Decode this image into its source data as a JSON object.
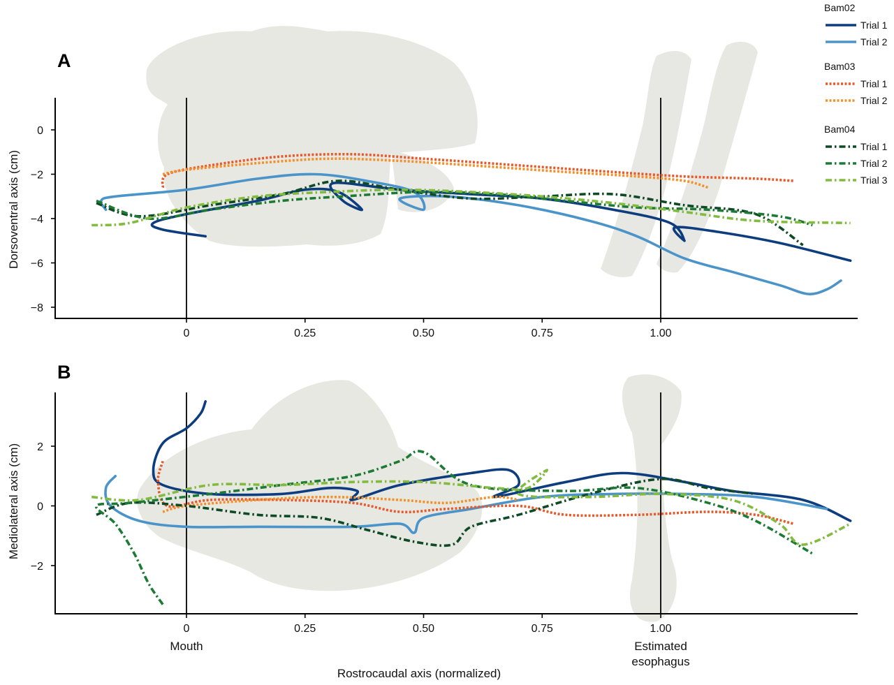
{
  "chart_data": [
    {
      "panel": "A",
      "type": "line",
      "ylabel": "Dorsoventral axis (cm)",
      "xlim": [
        -0.28,
        1.4
      ],
      "ylim": [
        -8.4,
        1.4
      ],
      "x_ticks": [
        0,
        0.25,
        0.5,
        0.75,
        1.0
      ],
      "x_tick_labels": [
        "0",
        "0.25",
        "0.50",
        "0.75",
        "1.00"
      ],
      "y_ticks": [
        0,
        -2,
        -4,
        -6,
        -8
      ],
      "y_tick_labels": [
        "0",
        "−2",
        "−4",
        "−6",
        "−8"
      ],
      "reference_lines_x": [
        0,
        1.0
      ],
      "background": "skull and hyoid CT model, lateral view",
      "series": [
        {
          "individual": "Bam02",
          "trial": "Trial 1",
          "color": "#0d3d7e",
          "dash": "solid",
          "x": [
            0.04,
            -0.05,
            -0.07,
            0.0,
            0.15,
            0.25,
            0.32,
            0.37,
            0.33,
            0.31,
            0.45,
            0.6,
            0.75,
            0.9,
            1.02,
            1.05,
            1.03,
            1.12,
            1.25,
            1.4
          ],
          "y": [
            -4.8,
            -4.5,
            -4.2,
            -3.8,
            -3.2,
            -2.7,
            -2.8,
            -3.6,
            -3.2,
            -2.4,
            -2.7,
            -2.9,
            -3.1,
            -3.6,
            -4.2,
            -5.0,
            -4.4,
            -4.6,
            -5.1,
            -5.9
          ]
        },
        {
          "individual": "Bam02",
          "trial": "Trial 2",
          "color": "#4b94c9",
          "dash": "solid",
          "x": [
            -0.17,
            -0.18,
            -0.15,
            0.0,
            0.15,
            0.27,
            0.38,
            0.48,
            0.5,
            0.45,
            0.55,
            0.7,
            0.85,
            0.95,
            1.05,
            1.15,
            1.25,
            1.31,
            1.35,
            1.38
          ],
          "y": [
            -3.6,
            -3.2,
            -3.0,
            -2.7,
            -2.2,
            -2.0,
            -2.3,
            -2.8,
            -3.6,
            -3.1,
            -3.0,
            -3.4,
            -4.1,
            -4.8,
            -5.8,
            -6.4,
            -7.0,
            -7.4,
            -7.2,
            -6.8
          ]
        },
        {
          "individual": "Bam03",
          "trial": "Trial 1",
          "color": "#e8592a",
          "dash": "dotted",
          "x": [
            -0.05,
            -0.04,
            0.05,
            0.2,
            0.35,
            0.5,
            0.7,
            0.9,
            1.05,
            1.2,
            1.28
          ],
          "y": [
            -2.6,
            -2.0,
            -1.6,
            -1.2,
            -1.1,
            -1.3,
            -1.6,
            -1.9,
            -2.1,
            -2.2,
            -2.3
          ]
        },
        {
          "individual": "Bam03",
          "trial": "Trial 2",
          "color": "#f39128",
          "dash": "dotted",
          "x": [
            -0.05,
            0.0,
            0.15,
            0.3,
            0.45,
            0.6,
            0.8,
            0.95,
            1.05,
            1.1
          ],
          "y": [
            -2.0,
            -1.8,
            -1.5,
            -1.3,
            -1.4,
            -1.6,
            -1.9,
            -2.1,
            -2.3,
            -2.6
          ]
        },
        {
          "individual": "Bam04",
          "trial": "Trial 1",
          "color": "#0f4a26",
          "dash": "dashdot",
          "x": [
            -0.19,
            -0.1,
            0.05,
            0.2,
            0.32,
            0.45,
            0.6,
            0.75,
            0.9,
            1.05,
            1.2,
            1.3
          ],
          "y": [
            -3.3,
            -3.9,
            -3.4,
            -2.9,
            -2.3,
            -2.7,
            -3.1,
            -3.0,
            -2.9,
            -3.4,
            -3.8,
            -5.2
          ]
        },
        {
          "individual": "Bam04",
          "trial": "Trial 2",
          "color": "#1c7a34",
          "dash": "dashdot",
          "x": [
            -0.19,
            -0.08,
            0.05,
            0.2,
            0.33,
            0.5,
            0.65,
            0.8,
            0.95,
            1.1,
            1.25,
            1.32
          ],
          "y": [
            -3.2,
            -4.0,
            -3.6,
            -3.2,
            -3.0,
            -2.8,
            -2.9,
            -3.2,
            -3.5,
            -3.6,
            -3.9,
            -4.3
          ]
        },
        {
          "individual": "Bam04",
          "trial": "Trial 3",
          "color": "#82bb3f",
          "dash": "dashdot",
          "x": [
            -0.2,
            -0.12,
            0.0,
            0.15,
            0.3,
            0.45,
            0.6,
            0.75,
            0.9,
            1.05,
            1.2,
            1.4
          ],
          "y": [
            -4.3,
            -4.2,
            -3.5,
            -3.0,
            -2.8,
            -2.7,
            -2.8,
            -3.0,
            -3.3,
            -3.7,
            -4.1,
            -4.2
          ]
        }
      ]
    },
    {
      "panel": "B",
      "type": "line",
      "xlabel": "Rostrocaudal axis (normalized)",
      "ylabel": "Mediolateral axis (cm)",
      "xlim": [
        -0.28,
        1.4
      ],
      "ylim": [
        -3.6,
        3.8
      ],
      "x_ticks": [
        0,
        0.25,
        0.5,
        0.75,
        1.0
      ],
      "x_tick_labels": [
        "0",
        "0.25",
        "0.50",
        "0.75",
        "1.00"
      ],
      "y_ticks": [
        2,
        0,
        -2
      ],
      "y_tick_labels": [
        "2",
        "0",
        "−2"
      ],
      "reference_lines_x": [
        0,
        1.0
      ],
      "reference_line_labels": [
        "Mouth",
        "Estimated esophagus"
      ],
      "background": "skull and hyoid CT model, dorsal view",
      "series": [
        {
          "individual": "Bam02",
          "trial": "Trial 1",
          "color": "#0d3d7e",
          "dash": "solid",
          "x": [
            0.04,
            0.03,
            0.0,
            -0.05,
            -0.07,
            -0.05,
            0.05,
            0.2,
            0.3,
            0.36,
            0.35,
            0.45,
            0.6,
            0.68,
            0.7,
            0.65,
            0.8,
            0.92,
            1.05,
            1.15,
            1.3,
            1.4
          ],
          "y": [
            3.5,
            3.1,
            2.6,
            2.1,
            1.2,
            0.7,
            0.4,
            0.4,
            0.6,
            0.5,
            0.2,
            0.7,
            1.1,
            1.2,
            0.7,
            0.3,
            0.8,
            1.1,
            0.8,
            0.5,
            0.2,
            -0.5
          ]
        },
        {
          "individual": "Bam02",
          "trial": "Trial 2",
          "color": "#4b94c9",
          "dash": "solid",
          "x": [
            -0.15,
            -0.17,
            -0.16,
            -0.1,
            0.0,
            0.15,
            0.35,
            0.45,
            0.48,
            0.5,
            0.6,
            0.75,
            0.9,
            1.05,
            1.2,
            1.35
          ],
          "y": [
            1.0,
            0.6,
            0.0,
            -0.5,
            -0.7,
            -0.7,
            -0.7,
            -0.6,
            -0.9,
            -0.4,
            -0.1,
            0.3,
            0.4,
            0.4,
            0.3,
            -0.1
          ]
        },
        {
          "individual": "Bam03",
          "trial": "Trial 1",
          "color": "#e8592a",
          "dash": "dotted",
          "x": [
            -0.05,
            -0.06,
            -0.04,
            0.05,
            0.2,
            0.35,
            0.45,
            0.55,
            0.7,
            0.8,
            0.95,
            1.1,
            1.2,
            1.28
          ],
          "y": [
            1.5,
            0.8,
            0.0,
            0.2,
            0.2,
            0.1,
            -0.2,
            -0.1,
            0.0,
            -0.3,
            -0.3,
            -0.2,
            -0.3,
            -0.6
          ]
        },
        {
          "individual": "Bam03",
          "trial": "Trial 2",
          "color": "#f39128",
          "dash": "dotted",
          "x": [
            -0.05,
            0.0,
            0.15,
            0.3,
            0.45,
            0.55,
            0.65,
            0.7
          ],
          "y": [
            -0.2,
            0.0,
            0.2,
            0.3,
            0.2,
            0.1,
            0.3,
            0.2
          ]
        },
        {
          "individual": "Bam04",
          "trial": "Trial 1",
          "color": "#0f4a26",
          "dash": "dashdot",
          "x": [
            -0.19,
            -0.12,
            0.0,
            0.15,
            0.28,
            0.38,
            0.48,
            0.56,
            0.6,
            0.7,
            0.85,
            1.0,
            1.1,
            1.2
          ],
          "y": [
            -0.3,
            0.1,
            0.0,
            -0.3,
            -0.4,
            -0.8,
            -1.2,
            -1.3,
            -0.7,
            -0.3,
            0.4,
            0.9,
            0.6,
            0.4
          ]
        },
        {
          "individual": "Bam04",
          "trial": "Trial 2",
          "color": "#1c7a34",
          "dash": "dashdot",
          "x": [
            -0.05,
            -0.08,
            -0.11,
            -0.15,
            -0.19,
            -0.12,
            0.05,
            0.2,
            0.35,
            0.45,
            0.5,
            0.6,
            0.8,
            0.95,
            1.1,
            1.2,
            1.32
          ],
          "y": [
            -3.3,
            -2.6,
            -1.6,
            -0.6,
            0.0,
            0.1,
            0.4,
            0.7,
            1.0,
            1.5,
            1.8,
            0.7,
            0.5,
            0.6,
            0.1,
            -0.5,
            -1.6
          ]
        },
        {
          "individual": "Bam04",
          "trial": "Trial 3",
          "color": "#82bb3f",
          "dash": "dashdot",
          "x": [
            -0.2,
            -0.1,
            0.05,
            0.2,
            0.35,
            0.5,
            0.65,
            0.72,
            0.76,
            0.7,
            0.85,
            1.0,
            1.15,
            1.25,
            1.3,
            1.4
          ],
          "y": [
            0.3,
            0.2,
            0.7,
            0.7,
            0.8,
            0.8,
            0.6,
            0.6,
            1.2,
            0.4,
            0.3,
            0.4,
            0.2,
            -0.6,
            -1.3,
            -0.6
          ]
        }
      ]
    }
  ],
  "panel_labels": [
    "A",
    "B"
  ],
  "legend": {
    "groups": [
      {
        "title": "Bam02",
        "entries": [
          "Trial 1",
          "Trial 2"
        ]
      },
      {
        "title": "Bam03",
        "entries": [
          "Trial 1",
          "Trial 2"
        ]
      },
      {
        "title": "Bam04",
        "entries": [
          "Trial 1",
          "Trial 2",
          "Trial 3"
        ]
      }
    ]
  }
}
